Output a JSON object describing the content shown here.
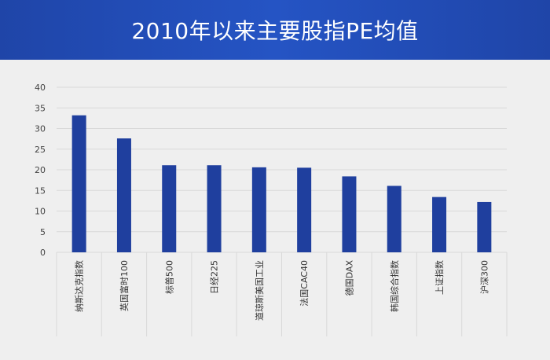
{
  "header": {
    "title": "2010年以来主要股指PE均值"
  },
  "colors": {
    "bar": "#1f3f9e",
    "header": "#2350bd",
    "background": "#efefef",
    "grid": "#d9d9d9"
  },
  "chart_data": {
    "type": "bar",
    "title": "2010年以来主要股指PE均值",
    "xlabel": "",
    "ylabel": "",
    "ylim": [
      0,
      40
    ],
    "yticks": [
      0,
      5,
      10,
      15,
      20,
      25,
      30,
      35,
      40
    ],
    "grid": true,
    "categories": [
      "纳斯达克指数",
      "英国富时100",
      "标普500",
      "日经225",
      "道琼斯美国工业",
      "法国CAC40",
      "德国DAX",
      "韩国综合指数",
      "上证指数",
      "沪深300"
    ],
    "values": [
      33.2,
      27.6,
      21.1,
      21.1,
      20.6,
      20.5,
      18.4,
      16.1,
      13.4,
      12.2
    ]
  }
}
